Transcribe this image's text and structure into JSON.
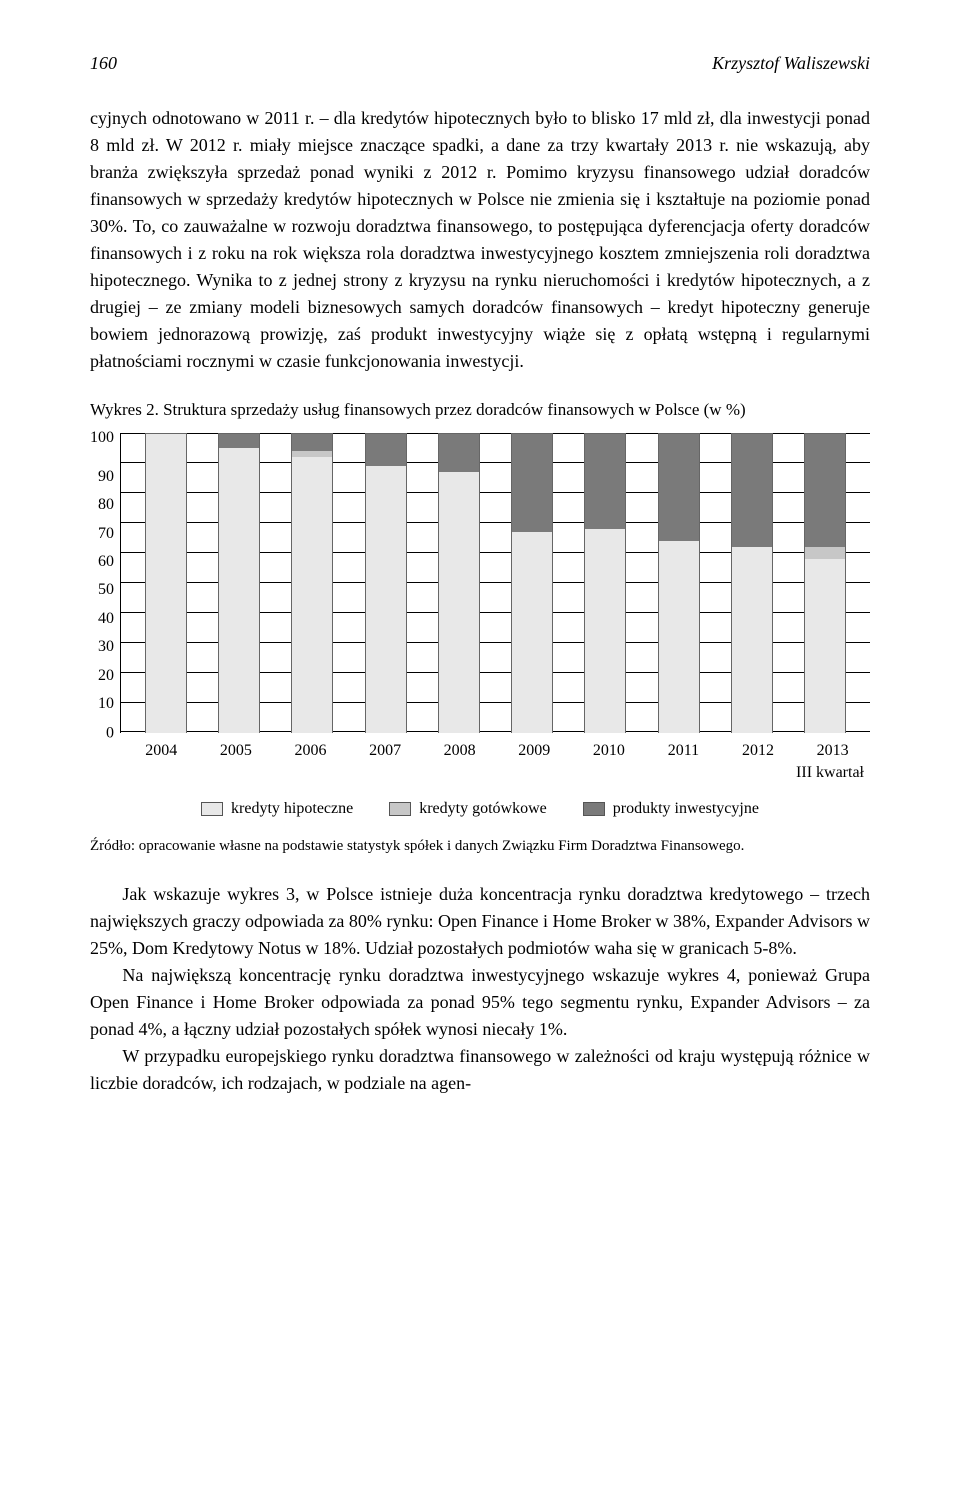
{
  "header": {
    "page_number": "160",
    "author": "Krzysztof Waliszewski"
  },
  "para1": "cyjnych odnotowano w 2011 r. – dla kredytów hipotecznych było to blisko 17 mld zł, dla inwestycji ponad 8 mld zł. W 2012 r. miały miejsce znaczące spadki, a dane za trzy kwartały 2013 r. nie wskazują, aby branża zwiększyła sprzedaż ponad wyniki z 2012 r. Pomimo kryzysu finansowego udział doradców finansowych w sprzedaży kredytów hipotecznych w Polsce nie zmienia się i kształtuje na poziomie ponad 30%. To, co zauważalne w rozwoju doradztwa finansowego, to postępująca dyferencjacja oferty doradców finansowych i z roku na rok większa rola doradztwa inwestycyjnego kosztem zmniejszenia roli doradztwa hipotecznego. Wynika to z jednej strony z kryzysu na rynku nieruchomości i kredytów hipotecznych, a z drugiej – ze zmiany modeli biznesowych samych doradców finansowych – kredyt hipoteczny generuje bowiem jednorazową prowizję, zaś produkt inwestycyjny wiąże się z opłatą wstępną i regularnymi płatnościami rocznymi w czasie funkcjonowania inwestycji.",
  "chart": {
    "title": "Wykres 2. Struktura sprzedaży usług finansowych przez doradców finansowych w Polsce (w %)",
    "type": "stacked-bar",
    "ylim": [
      0,
      100
    ],
    "ytick_step": 10,
    "y_ticks": [
      "100",
      "90",
      "80",
      "70",
      "60",
      "50",
      "40",
      "30",
      "20",
      "10",
      "0"
    ],
    "categories": [
      "2004",
      "2005",
      "2006",
      "2007",
      "2008",
      "2009",
      "2010",
      "2011",
      "2012",
      "2013"
    ],
    "x_sublabel": "III kwartał",
    "series": [
      {
        "name": "kredyty hipoteczne",
        "color": "#e8e8e8"
      },
      {
        "name": "kredyty gotówkowe",
        "color": "#c7c7c7"
      },
      {
        "name": "produkty inwestycyjne",
        "color": "#7a7a7a"
      }
    ],
    "data": [
      {
        "hip": 100,
        "got": 0,
        "inw": 0
      },
      {
        "hip": 95,
        "got": 0,
        "inw": 5
      },
      {
        "hip": 92,
        "got": 2,
        "inw": 6
      },
      {
        "hip": 89,
        "got": 0,
        "inw": 11
      },
      {
        "hip": 87,
        "got": 0,
        "inw": 13
      },
      {
        "hip": 67,
        "got": 0,
        "inw": 33
      },
      {
        "hip": 68,
        "got": 0,
        "inw": 32
      },
      {
        "hip": 64,
        "got": 0,
        "inw": 36
      },
      {
        "hip": 62,
        "got": 0,
        "inw": 38
      },
      {
        "hip": 58,
        "got": 4,
        "inw": 38
      }
    ],
    "grid_color": "#000000",
    "background_color": "#ffffff",
    "bar_border": "#666666"
  },
  "source": "Źródło: opracowanie własne na podstawie statystyk spółek i danych Związku Firm Doradztwa Finansowego.",
  "para2": "Jak wskazuje wykres 3, w Polsce istnieje duża koncentracja rynku doradztwa kredytowego – trzech największych graczy odpowiada za 80% rynku: Open Finance i Home Broker w 38%, Expander Advisors w 25%, Dom Kredytowy Notus w 18%. Udział pozostałych podmiotów waha się w granicach 5-8%.",
  "para3": "Na największą koncentrację rynku doradztwa inwestycyjnego wskazuje wykres 4, ponieważ Grupa Open Finance i Home Broker odpowiada za ponad 95% tego segmentu rynku, Expander Advisors – za ponad 4%, a łączny udział pozostałych spółek wynosi niecały 1%.",
  "para4": "W przypadku europejskiego rynku doradztwa finansowego w zależności od kraju występują różnice w liczbie doradców, ich rodzajach, w podziale na agen-"
}
